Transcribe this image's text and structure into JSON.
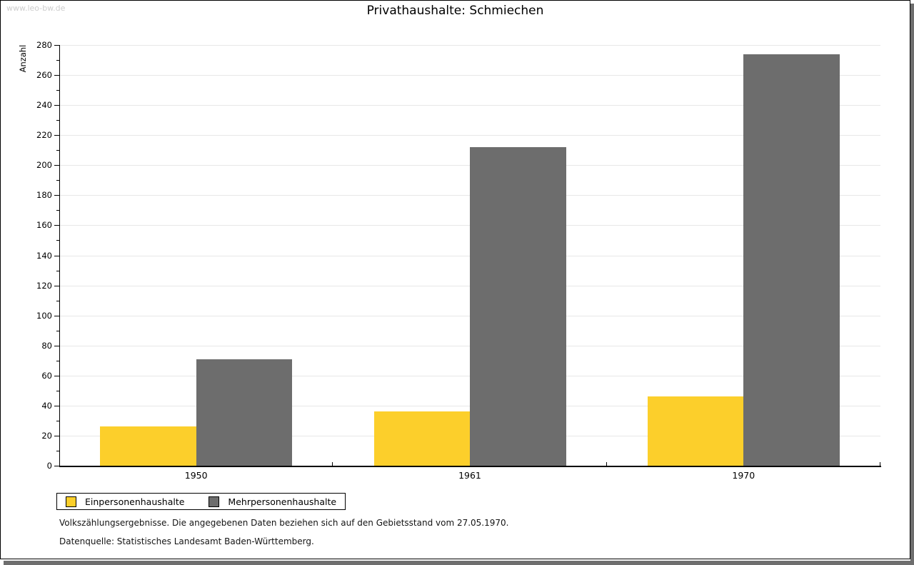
{
  "page": {
    "watermark": "www.leo-bw.de",
    "title": "Privathaushalte: Schmiechen",
    "footnote_line1": "Volkszählungsergebnisse. Die angegebenen Daten beziehen sich auf den Gebietsstand vom 27.05.1970.",
    "footnote_line2": "Datenquelle: Statistisches Landesamt Baden-Württemberg."
  },
  "chart_data": {
    "type": "bar",
    "title": "Privathaushalte: Schmiechen",
    "ylabel": "Anzahl",
    "xlabel": "",
    "categories": [
      "1950",
      "1961",
      "1970"
    ],
    "series": [
      {
        "name": "Einpersonenhaushalte",
        "color": "#fccf2b",
        "values": [
          26,
          36,
          46
        ]
      },
      {
        "name": "Mehrpersonenhaushalte",
        "color": "#6d6d6d",
        "values": [
          71,
          212,
          274
        ]
      }
    ],
    "ylim": [
      0,
      280
    ],
    "ytick_step": 20,
    "y_minor_tick_step": 10,
    "grid": true,
    "gridline_color": "#e8e8e8",
    "legend_position": "bottom-left"
  },
  "colors": {
    "shadow": "#6e6e6e",
    "watermark": "#cdcdcd",
    "axis": "#000000"
  }
}
